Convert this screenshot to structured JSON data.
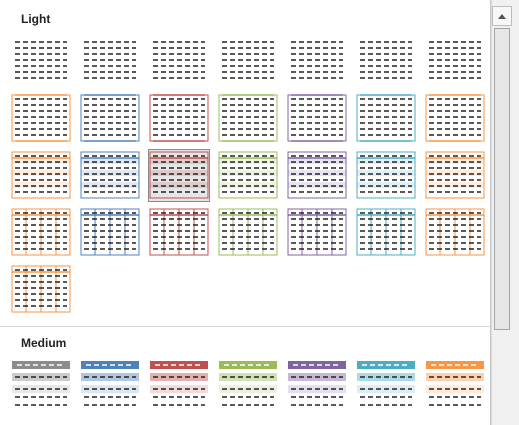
{
  "gallery": {
    "sections": [
      {
        "id": "light",
        "title": "Light"
      },
      {
        "id": "medium",
        "title": "Medium"
      }
    ],
    "light_colors": [
      "#6b6b6b",
      "#6b6b6b",
      "#4f81bd",
      "#c0504d",
      "#9bbb59",
      "#8064a2",
      "#4bacc6",
      "#f79646"
    ],
    "medium_colors": [
      "#8c8c8c",
      "#4f81bd",
      "#c0504d",
      "#9bbb59",
      "#8064a2",
      "#4bacc6",
      "#f79646"
    ],
    "selected_style": "light-row3-col3"
  },
  "scrollbar": {
    "up_icon": "triangle-up-icon"
  }
}
